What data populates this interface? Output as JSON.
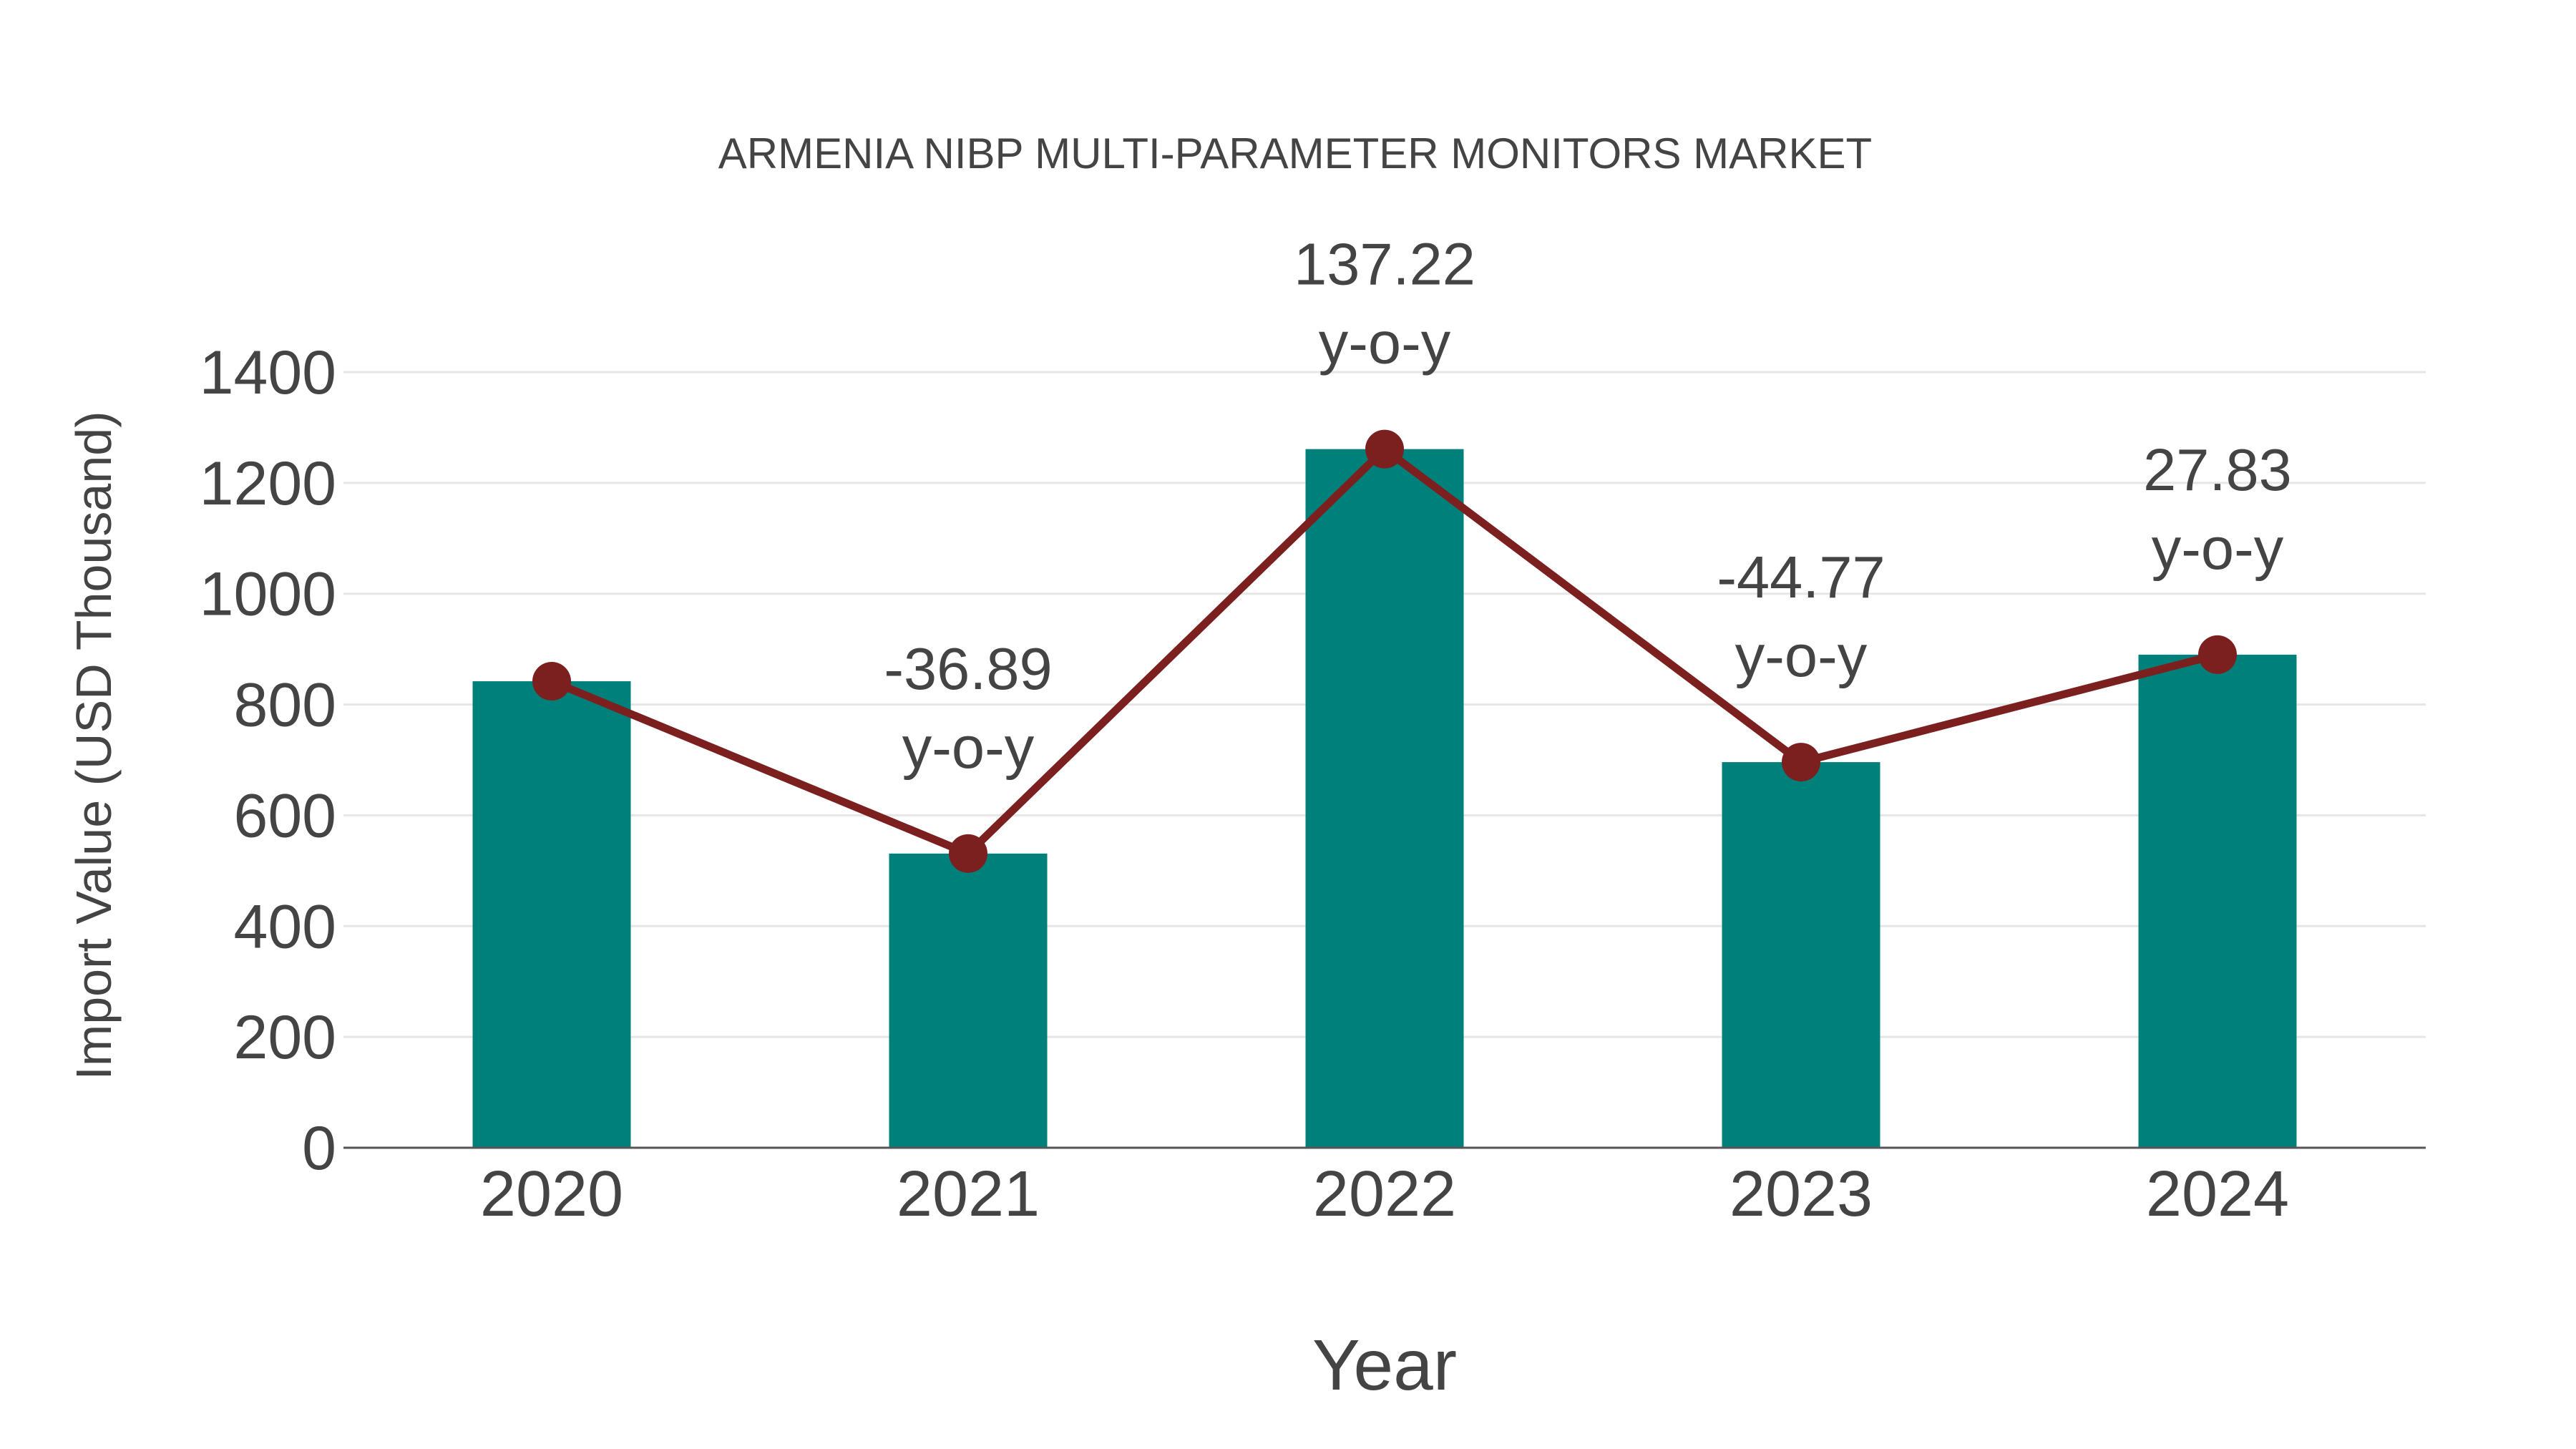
{
  "chart_data": {
    "type": "bar",
    "title": "ARMENIA NIBP MULTI-PARAMETER MONITORS MARKET",
    "xlabel": "Year",
    "ylabel": "Import Value (USD Thousand)",
    "ylim": [
      0,
      1400
    ],
    "yticks": [
      0,
      200,
      400,
      600,
      800,
      1000,
      1200,
      1400
    ],
    "categories": [
      "2020",
      "2021",
      "2022",
      "2023",
      "2024"
    ],
    "series": [
      {
        "name": "Import Value",
        "type": "bar",
        "color": "#00807A",
        "values": [
          842,
          531,
          1261,
          696,
          890
        ]
      },
      {
        "name": "Trend",
        "type": "line",
        "color": "#7B1F1F",
        "values": [
          842,
          531,
          1261,
          696,
          890
        ]
      }
    ],
    "annotations": [
      {
        "category": "2021",
        "line1": "-36.89",
        "line2": "y-o-y"
      },
      {
        "category": "2022",
        "line1": "137.22",
        "line2": "y-o-y"
      },
      {
        "category": "2023",
        "line1": "-44.77",
        "line2": "y-o-y"
      },
      {
        "category": "2024",
        "line1": "27.83",
        "line2": "y-o-y"
      }
    ],
    "grid": true,
    "legend": false
  },
  "colors": {
    "bar": "#00807A",
    "line": "#7B1F1F",
    "text": "#444444",
    "grid": "#E6E6E6",
    "axis": "#555555"
  }
}
